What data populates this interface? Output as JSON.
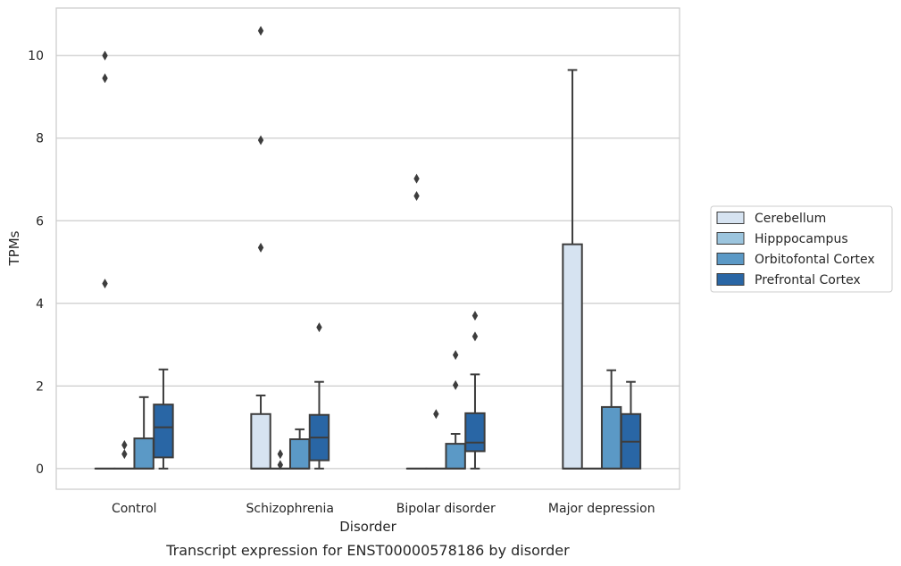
{
  "chart_data": {
    "type": "box",
    "xlabel": "Disorder",
    "ylabel": "TPMs",
    "caption": "Transcript expression for ENST00000578186 by disorder",
    "ylim": [
      -0.5,
      11.15
    ],
    "yticks": [
      0,
      2,
      4,
      6,
      8,
      10
    ],
    "grid": "horizontal",
    "legend_position": "right",
    "categories": [
      "Control",
      "Schizophrenia",
      "Bipolar disorder",
      "Major depression"
    ],
    "series": [
      {
        "name": "Cerebellum",
        "color": "#d6e3f1",
        "boxes": [
          {
            "q1": 0,
            "median": 0,
            "q3": 0,
            "whisker_low": 0,
            "whisker_high": 0,
            "outliers": [
              10.0,
              9.45,
              4.48
            ]
          },
          {
            "q1": 0,
            "median": 0,
            "q3": 1.32,
            "whisker_low": 0,
            "whisker_high": 1.77,
            "outliers": [
              10.6,
              7.95,
              5.35
            ]
          },
          {
            "q1": 0,
            "median": 0,
            "q3": 0,
            "whisker_low": 0,
            "whisker_high": 0,
            "outliers": [
              7.02,
              6.6
            ]
          },
          {
            "q1": 0,
            "median": 0,
            "q3": 5.43,
            "whisker_low": 0,
            "whisker_high": 9.65,
            "outliers": []
          }
        ]
      },
      {
        "name": "Hipppocampus",
        "color": "#9cc5de",
        "boxes": [
          {
            "q1": 0,
            "median": 0,
            "q3": 0,
            "whisker_low": 0,
            "whisker_high": 0,
            "outliers": [
              0.57,
              0.35
            ]
          },
          {
            "q1": 0,
            "median": 0,
            "q3": 0,
            "whisker_low": 0,
            "whisker_high": 0,
            "outliers": [
              0.35,
              0.09
            ]
          },
          {
            "q1": 0,
            "median": 0,
            "q3": 0,
            "whisker_low": 0,
            "whisker_high": 0,
            "outliers": [
              1.32
            ]
          },
          {
            "q1": 0,
            "median": 0,
            "q3": 0,
            "whisker_low": 0,
            "whisker_high": 0,
            "outliers": []
          }
        ]
      },
      {
        "name": "Orbitofontal Cortex",
        "color": "#5b99c6",
        "boxes": [
          {
            "q1": 0,
            "median": 0,
            "q3": 0.73,
            "whisker_low": 0,
            "whisker_high": 1.73,
            "outliers": []
          },
          {
            "q1": 0,
            "median": 0,
            "q3": 0.71,
            "whisker_low": 0,
            "whisker_high": 0.95,
            "outliers": []
          },
          {
            "q1": 0,
            "median": 0,
            "q3": 0.6,
            "whisker_low": 0,
            "whisker_high": 0.84,
            "outliers": [
              2.75,
              2.02
            ]
          },
          {
            "q1": 0,
            "median": 0,
            "q3": 1.49,
            "whisker_low": 0,
            "whisker_high": 2.38,
            "outliers": []
          }
        ]
      },
      {
        "name": "Prefrontal Cortex",
        "color": "#2966a5",
        "boxes": [
          {
            "q1": 0.27,
            "median": 1.0,
            "q3": 1.55,
            "whisker_low": 0,
            "whisker_high": 2.4,
            "outliers": []
          },
          {
            "q1": 0.2,
            "median": 0.75,
            "q3": 1.3,
            "whisker_low": 0,
            "whisker_high": 2.1,
            "outliers": [
              3.42
            ]
          },
          {
            "q1": 0.42,
            "median": 0.63,
            "q3": 1.34,
            "whisker_low": 0,
            "whisker_high": 2.28,
            "outliers": [
              3.7,
              3.2
            ]
          },
          {
            "q1": 0,
            "median": 0.65,
            "q3": 1.32,
            "whisker_low": 0,
            "whisker_high": 2.1,
            "outliers": []
          }
        ]
      }
    ]
  }
}
